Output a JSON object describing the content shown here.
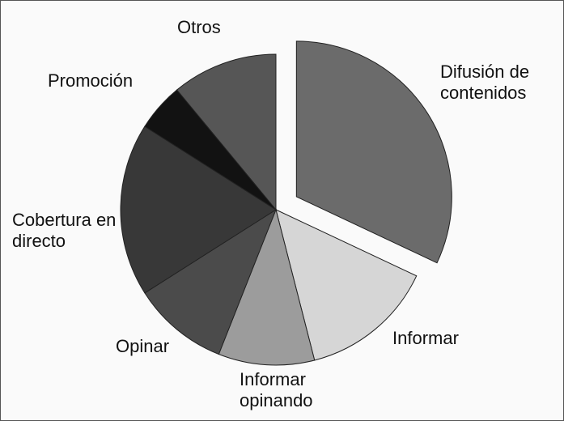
{
  "chart_data": {
    "type": "pie",
    "categories": [
      "Difusión de contenidos",
      "Informar",
      "Informar opinando",
      "Opinar",
      "Cobertura en directo",
      "Promoción",
      "Otros"
    ],
    "values": [
      32,
      14,
      10,
      10,
      18,
      5,
      11
    ],
    "colors": [
      "#6b6b6b",
      "#d6d6d6",
      "#9c9c9c",
      "#4b4b4b",
      "#383838",
      "#121212",
      "#565656"
    ]
  }
}
